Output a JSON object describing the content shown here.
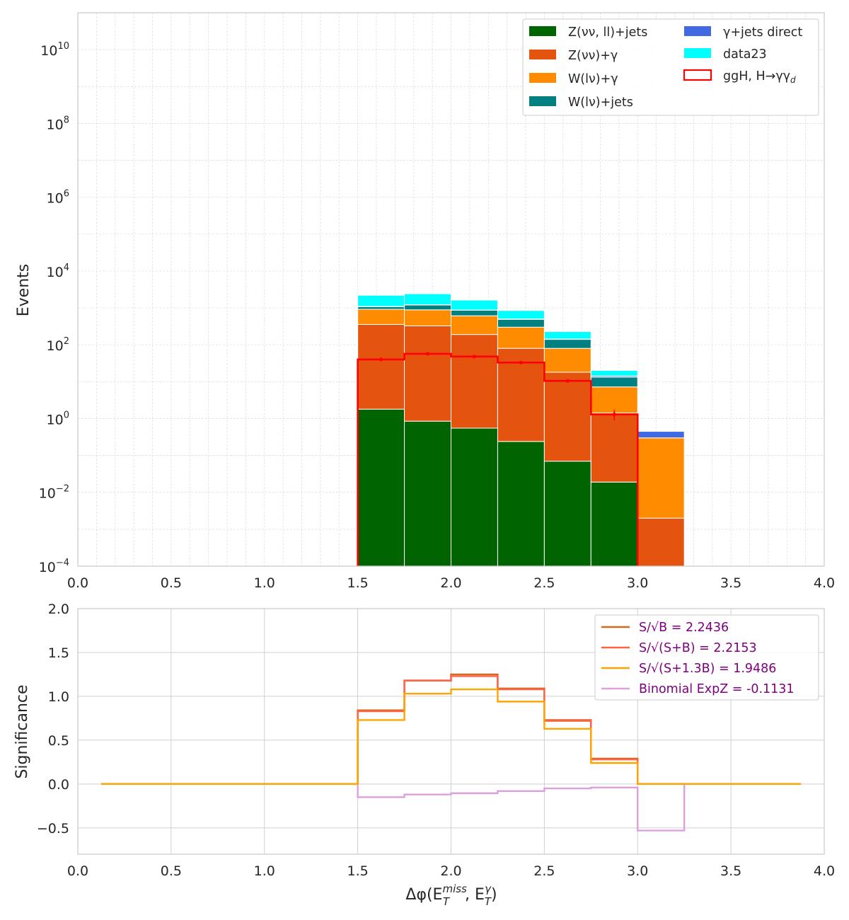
{
  "chart_data": [
    {
      "type": "bar",
      "stacked": true,
      "yscale": "log",
      "bin_edges": [
        1.5,
        1.75,
        2.0,
        2.25,
        2.5,
        2.75,
        3.0,
        3.25
      ],
      "xlim": [
        0.0,
        4.0
      ],
      "ylim": [
        0.0001,
        100000000000
      ],
      "xticks": [
        "0.0",
        "0.5",
        "1.0",
        "1.5",
        "2.0",
        "2.5",
        "3.0",
        "3.5",
        "4.0"
      ],
      "yticks": [
        {
          "base": "10",
          "exp": "−4",
          "value": 0.0001
        },
        {
          "base": "10",
          "exp": "−2",
          "value": 0.01
        },
        {
          "base": "10",
          "exp": "0",
          "value": 1
        },
        {
          "base": "10",
          "exp": "2",
          "value": 100
        },
        {
          "base": "10",
          "exp": "4",
          "value": 10000
        },
        {
          "base": "10",
          "exp": "6",
          "value": 1000000
        },
        {
          "base": "10",
          "exp": "8",
          "value": 100000000
        },
        {
          "base": "10",
          "exp": "10",
          "value": 10000000000
        }
      ],
      "ylabel": "Events",
      "grid": true,
      "legend_position": "top-right",
      "series": [
        {
          "name": "Z(νν, ll)+jets",
          "color": "#006400",
          "values": [
            1.8,
            0.85,
            0.55,
            0.24,
            0.07,
            0.019,
            0.0
          ]
        },
        {
          "name": "Z(νν)+γ",
          "color": "#e4540f",
          "values": [
            355,
            325,
            190,
            80,
            18,
            1.4,
            0.002
          ]
        },
        {
          "name": "W(lν)+γ",
          "color": "#ff8c00",
          "values": [
            560,
            560,
            420,
            220,
            62,
            5.8,
            0.298
          ]
        },
        {
          "name": "W(lν)+jets",
          "color": "#008080",
          "values": [
            160,
            310,
            250,
            190,
            60,
            6.0,
            0.0
          ]
        },
        {
          "name": "γ+jets direct",
          "color": "#4169e1",
          "values": [
            20,
            25,
            15,
            10,
            3,
            1.0,
            0.15
          ]
        },
        {
          "name": "data23",
          "color": "#00ffff",
          "values": [
            1100,
            1200,
            750,
            350,
            85,
            6.0,
            0.0
          ]
        }
      ],
      "signal": {
        "name": "ggH, H→γγ_d",
        "color": "#ff0000",
        "values": [
          40,
          57,
          48,
          33,
          10.5,
          1.3,
          0.0
        ],
        "errors": [
          2.5,
          3.0,
          2.5,
          2.0,
          1.0,
          0.4,
          0.0
        ]
      }
    },
    {
      "type": "line",
      "step": true,
      "bin_edges": [
        0.0,
        0.25,
        0.5,
        0.75,
        1.0,
        1.25,
        1.5,
        1.75,
        2.0,
        2.25,
        2.5,
        2.75,
        3.0,
        3.25,
        3.5,
        3.75,
        4.0
      ],
      "xlim": [
        0.0,
        4.0
      ],
      "ylim": [
        -0.8,
        2.0
      ],
      "xticks": [
        "0.0",
        "0.5",
        "1.0",
        "1.5",
        "2.0",
        "2.5",
        "3.0",
        "3.5",
        "4.0"
      ],
      "yticks": [
        "−0.5",
        "0.0",
        "0.5",
        "1.0",
        "1.5",
        "2.0"
      ],
      "ytick_values": [
        -0.5,
        0.0,
        0.5,
        1.0,
        1.5,
        2.0
      ],
      "xlabel_main": "Δφ(E",
      "xlabel_sub1": "T",
      "xlabel_sup1": "miss",
      "xlabel_mid": ", E",
      "xlabel_sub2": "T",
      "xlabel_sup2": "γ",
      "xlabel_end": ")",
      "ylabel": "Significance",
      "grid": true,
      "legend_position": "top-right",
      "legend_text_color": "#800080",
      "series": [
        {
          "name": "S/√B = 2.2436",
          "color": "#d2691e",
          "values": [
            0,
            0,
            0,
            0,
            0,
            0,
            0.84,
            1.18,
            1.25,
            1.09,
            0.73,
            0.29,
            0.0,
            0.0,
            0,
            0
          ]
        },
        {
          "name": "S/√(S+B) = 2.2153",
          "color": "#ff6347",
          "values": [
            0,
            0,
            0,
            0,
            0,
            0,
            0.83,
            1.18,
            1.23,
            1.08,
            0.72,
            0.28,
            0.0,
            0.0,
            0,
            0
          ]
        },
        {
          "name": "S/√(S+1.3B) = 1.9486",
          "color": "#ffa500",
          "values": [
            0,
            0,
            0,
            0,
            0,
            0,
            0.73,
            1.03,
            1.08,
            0.94,
            0.63,
            0.24,
            0.0,
            0.0,
            0,
            0
          ]
        },
        {
          "name": "Binomial ExpZ = -0.1131",
          "color": "#dda0dd",
          "values": [
            0,
            0,
            0,
            0,
            0,
            0,
            -0.15,
            -0.12,
            -0.105,
            -0.08,
            -0.05,
            -0.04,
            -0.53,
            0.0,
            0,
            0
          ]
        }
      ]
    }
  ]
}
